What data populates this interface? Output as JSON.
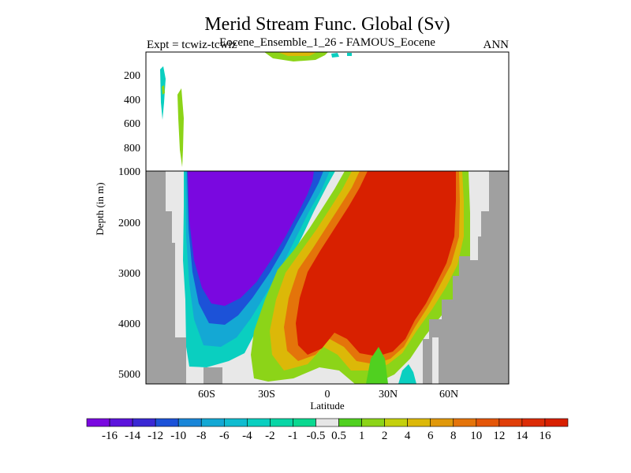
{
  "title": "Merid Stream Func. Global (Sv)",
  "expt_label": "Expt = tcwiz-tcwiz",
  "subtitle": "Eocene_Ensemble_1_26 - FAMOUS_Eocene",
  "season": "ANN",
  "colors": {
    "land": "#a0a0a0",
    "near_zero": "#e8e8e8",
    "frame": "#000000"
  },
  "chart_data": {
    "type": "heatmap",
    "xlabel": "Latitude",
    "ylabel": "Depth (in m)",
    "xlim": [
      -90,
      90
    ],
    "x_ticks": [
      {
        "value": -60,
        "label": "60S"
      },
      {
        "value": -30,
        "label": "30S"
      },
      {
        "value": 0,
        "label": "0"
      },
      {
        "value": 30,
        "label": "30N"
      },
      {
        "value": 60,
        "label": "60N"
      }
    ],
    "upper_panel": {
      "ylim": [
        0,
        1000
      ],
      "y_ticks": [
        {
          "value": 200,
          "label": "200"
        },
        {
          "value": 400,
          "label": "400"
        },
        {
          "value": 600,
          "label": "600"
        },
        {
          "value": 800,
          "label": "800"
        }
      ]
    },
    "lower_panel": {
      "ylim": [
        1000,
        5200
      ],
      "y_ticks": [
        {
          "value": 1000,
          "label": "1000"
        },
        {
          "value": 2000,
          "label": "2000"
        },
        {
          "value": 3000,
          "label": "3000"
        },
        {
          "value": 4000,
          "label": "4000"
        },
        {
          "value": 5000,
          "label": "5000"
        }
      ]
    },
    "colorbar": {
      "labels": [
        "-16",
        "-14",
        "-12",
        "-10",
        "-8",
        "-6",
        "-4",
        "-2",
        "-1",
        "-0.5",
        "0.5",
        "1",
        "2",
        "4",
        "6",
        "8",
        "10",
        "12",
        "14",
        "16"
      ],
      "colors": [
        "#7a08e0",
        "#5c14dc",
        "#3a28d4",
        "#1c52d8",
        "#1a86d8",
        "#14a8d4",
        "#10bcd0",
        "#0acfc0",
        "#08d6a6",
        "#0ad890",
        "#e6e6e6",
        "#50d020",
        "#8cd418",
        "#c4d00c",
        "#dcb808",
        "#e0980a",
        "#e4740a",
        "#e45608",
        "#e03e08",
        "#dc2c06",
        "#d82000"
      ]
    }
  }
}
